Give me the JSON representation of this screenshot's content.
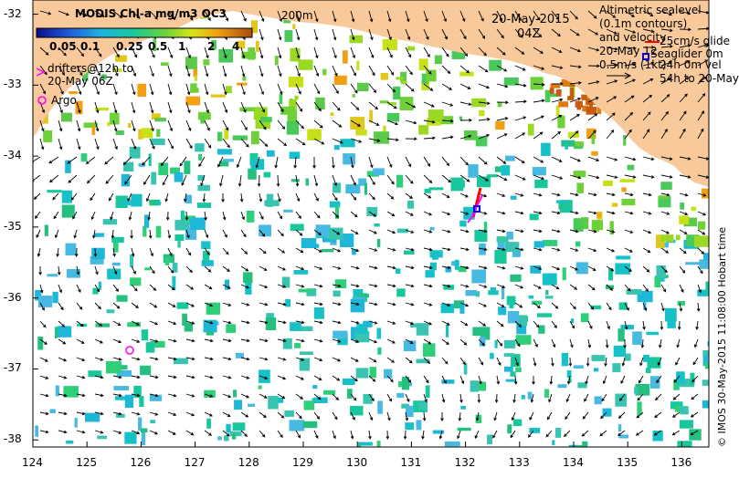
{
  "map": {
    "title": "MODIS Chl-a mg/m3 OC3",
    "date": "20-May-2015",
    "time": "04Z",
    "isobath_label": "200m",
    "lon_ticks": [
      "124",
      "125",
      "126",
      "127",
      "128",
      "129",
      "130",
      "131",
      "132",
      "133",
      "134",
      "135",
      "136"
    ],
    "lat_ticks": [
      "-32",
      "-33",
      "-34",
      "-35",
      "-36",
      "-37",
      "-38"
    ],
    "lon_range": [
      124,
      136.5
    ],
    "lat_range": [
      -31.8,
      -38.1
    ],
    "colorbar_ticks": [
      "0.05",
      "0.1",
      "0.25",
      "0.5",
      "1",
      "2",
      "4"
    ],
    "credit": "© IMOS 30-May-2015 11:08:00 Hobart time",
    "colors": {
      "land": "#f8c99a",
      "ocean": "#ffffff",
      "drifter": "#ff00ff",
      "glider": "#0000ff",
      "glider_track": "#ff0000"
    }
  },
  "legend": {
    "drifters_line1": "drifters@12h to",
    "drifters_line2": "20-May 06Z",
    "argo": "Argo",
    "alt_line1": "Altimetric sealevel",
    "alt_line2": "(0.1m contours)",
    "alt_line3": "and velocity",
    "alt_line4": "20-May 12",
    "glide_label": "25cm/s glide",
    "seaglider_label": "Seaglider 0m",
    "vel_label": "0.5m/s (1kt)",
    "vel_label2": "24h 0m vel",
    "vel_label3": "54h to 20-May"
  }
}
